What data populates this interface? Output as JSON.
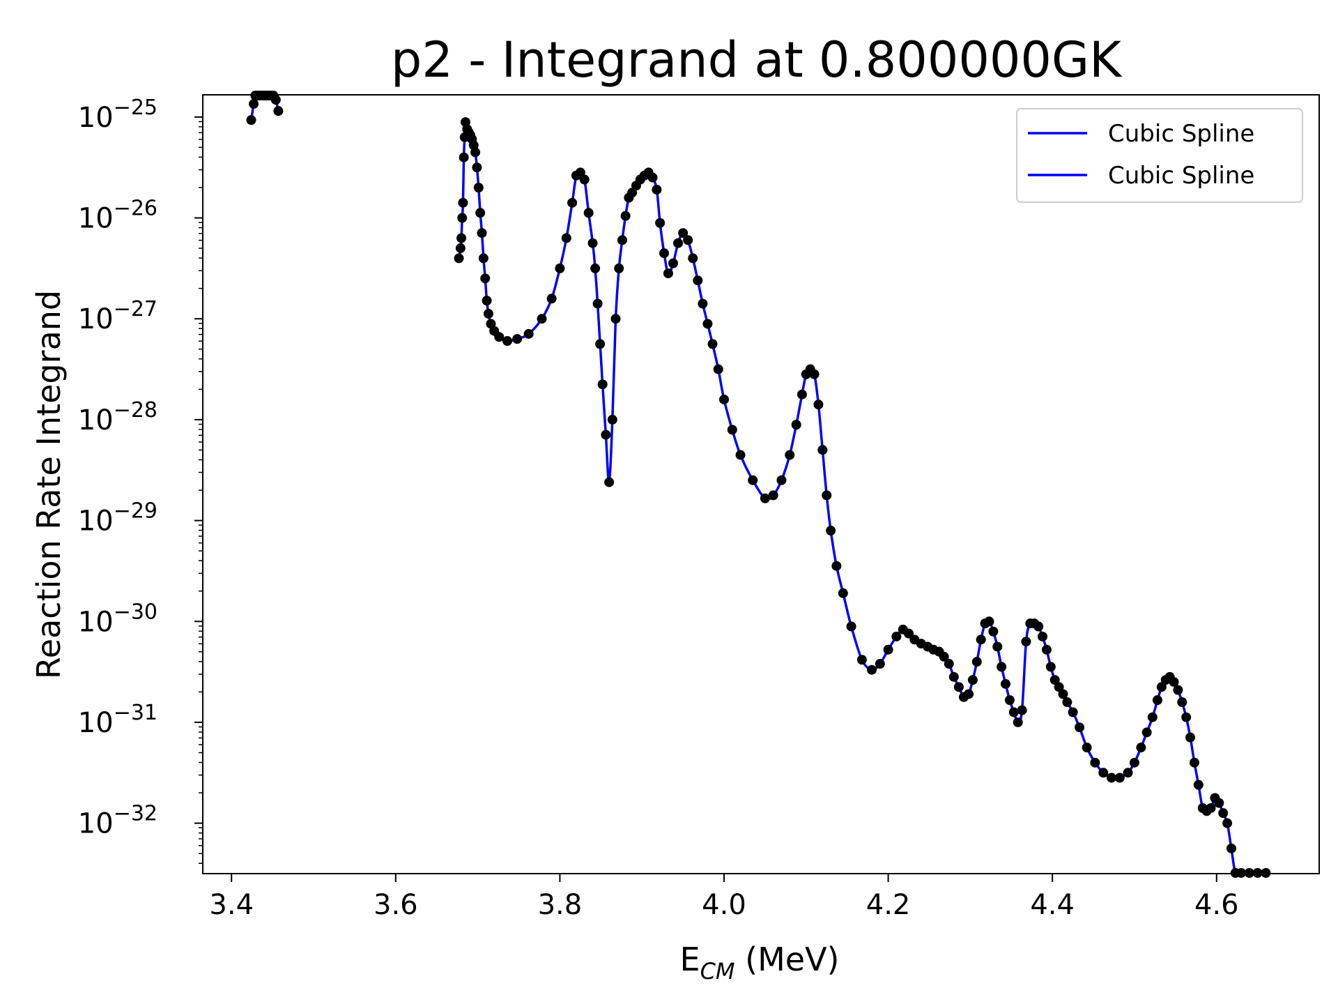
{
  "chart_data": {
    "type": "line",
    "title": "p2 - Integrand at 0.800000GK",
    "xlabel_main": "E",
    "xlabel_sub": "CM",
    "xlabel_unit": " (MeV)",
    "ylabel": "Reaction Rate Integrand",
    "xlim": [
      3.365,
      4.725
    ],
    "ylim_log10": [
      -32.5,
      -24.78
    ],
    "yscale": "log",
    "x_ticks": [
      "3.4",
      "3.6",
      "3.8",
      "4.0",
      "4.2",
      "4.4",
      "4.6"
    ],
    "y_ticks": [
      {
        "base": "10",
        "exp": "−25",
        "log": -25
      },
      {
        "base": "10",
        "exp": "−26",
        "log": -26
      },
      {
        "base": "10",
        "exp": "−27",
        "log": -27
      },
      {
        "base": "10",
        "exp": "−28",
        "log": -28
      },
      {
        "base": "10",
        "exp": "−29",
        "log": -29
      },
      {
        "base": "10",
        "exp": "−30",
        "log": -30
      },
      {
        "base": "10",
        "exp": "−31",
        "log": -31
      },
      {
        "base": "10",
        "exp": "−32",
        "log": -32
      }
    ],
    "grid": false,
    "legend_position": "top-right",
    "legend": [
      {
        "label": "Cubic Spline",
        "color": "#0000ff"
      },
      {
        "label": "Cubic Spline",
        "color": "#0000ff"
      }
    ],
    "series": [
      {
        "legend_index": 0,
        "color": "#0000ff",
        "points_color": "#000000",
        "x": [
          3.424,
          3.427,
          3.429,
          3.432,
          3.434,
          3.437,
          3.44,
          3.442,
          3.445,
          3.448,
          3.451,
          3.454,
          3.457
        ],
        "log10_y": [
          -25.03,
          -24.87,
          -24.78,
          -24.65,
          -24.62,
          -24.61,
          -24.6,
          -24.62,
          -24.65,
          -24.7,
          -24.75,
          -24.83,
          -24.94
        ]
      },
      {
        "legend_index": 1,
        "color": "#0000ff",
        "points_color": "#000000",
        "x": [
          3.677,
          3.679,
          3.68,
          3.681,
          3.682,
          3.683,
          3.684,
          3.685,
          3.687,
          3.689,
          3.691,
          3.693,
          3.695,
          3.697,
          3.699,
          3.701,
          3.703,
          3.705,
          3.707,
          3.709,
          3.711,
          3.713,
          3.716,
          3.72,
          3.726,
          3.736,
          3.748,
          3.762,
          3.778,
          3.79,
          3.8,
          3.808,
          3.815,
          3.82,
          3.825,
          3.83,
          3.835,
          3.84,
          3.843,
          3.846,
          3.849,
          3.852,
          3.856,
          3.86,
          3.864,
          3.868,
          3.872,
          3.876,
          3.88,
          3.884,
          3.888,
          3.893,
          3.898,
          3.903,
          3.908,
          3.913,
          3.918,
          3.922,
          3.927,
          3.932,
          3.938,
          3.944,
          3.95,
          3.956,
          3.962,
          3.968,
          3.974,
          3.98,
          3.986,
          3.993,
          4.0,
          4.01,
          4.02,
          4.035,
          4.05,
          4.06,
          4.07,
          4.08,
          4.088,
          4.095,
          4.1,
          4.105,
          4.11,
          4.115,
          4.12,
          4.125,
          4.13,
          4.137,
          4.145,
          4.155,
          4.168,
          4.18,
          4.19,
          4.2,
          4.21,
          4.218,
          4.225,
          4.232,
          4.24,
          4.248,
          4.255,
          4.262,
          4.268,
          4.274,
          4.28,
          4.286,
          4.292,
          4.298,
          4.303,
          4.308,
          4.313,
          4.318,
          4.323,
          4.328,
          4.333,
          4.338,
          4.343,
          4.348,
          4.353,
          4.358,
          4.363,
          4.368,
          4.373,
          4.378,
          4.383,
          4.388,
          4.393,
          4.398,
          4.403,
          4.408,
          4.413,
          4.418,
          4.425,
          4.433,
          4.442,
          4.452,
          4.462,
          4.472,
          4.482,
          4.492,
          4.5,
          4.508,
          4.515,
          4.522,
          4.528,
          4.533,
          4.538,
          4.543,
          4.548,
          4.553,
          4.558,
          4.563,
          4.568,
          4.573,
          4.578,
          4.583,
          4.588,
          4.593,
          4.598,
          4.603,
          4.608,
          4.613,
          4.618,
          4.623,
          4.63,
          4.64,
          4.65,
          4.66
        ],
        "log10_y": [
          -26.4,
          -26.3,
          -26.2,
          -26.0,
          -25.85,
          -25.4,
          -25.2,
          -25.05,
          -25.12,
          -25.15,
          -25.18,
          -25.22,
          -25.28,
          -25.35,
          -25.5,
          -25.7,
          -25.95,
          -26.15,
          -26.4,
          -26.6,
          -26.82,
          -26.95,
          -27.05,
          -27.12,
          -27.18,
          -27.22,
          -27.2,
          -27.15,
          -27.0,
          -26.8,
          -26.5,
          -26.2,
          -25.85,
          -25.58,
          -25.55,
          -25.62,
          -25.95,
          -26.25,
          -26.5,
          -26.85,
          -27.25,
          -27.65,
          -28.15,
          -28.62,
          -28.0,
          -27.0,
          -26.5,
          -26.22,
          -25.98,
          -25.8,
          -25.75,
          -25.68,
          -25.62,
          -25.58,
          -25.55,
          -25.6,
          -25.72,
          -26.05,
          -26.35,
          -26.55,
          -26.45,
          -26.25,
          -26.15,
          -26.22,
          -26.4,
          -26.62,
          -26.85,
          -27.05,
          -27.25,
          -27.5,
          -27.8,
          -28.1,
          -28.35,
          -28.6,
          -28.78,
          -28.75,
          -28.6,
          -28.35,
          -28.05,
          -27.75,
          -27.55,
          -27.5,
          -27.55,
          -27.85,
          -28.3,
          -28.75,
          -29.1,
          -29.45,
          -29.72,
          -30.05,
          -30.38,
          -30.48,
          -30.42,
          -30.28,
          -30.15,
          -30.08,
          -30.12,
          -30.18,
          -30.22,
          -30.25,
          -30.28,
          -30.3,
          -30.35,
          -30.42,
          -30.55,
          -30.65,
          -30.75,
          -30.72,
          -30.58,
          -30.4,
          -30.18,
          -30.02,
          -30.0,
          -30.1,
          -30.25,
          -30.45,
          -30.62,
          -30.78,
          -30.9,
          -31.0,
          -30.88,
          -30.2,
          -30.02,
          -30.02,
          -30.05,
          -30.15,
          -30.28,
          -30.45,
          -30.58,
          -30.65,
          -30.72,
          -30.8,
          -30.9,
          -31.05,
          -31.25,
          -31.4,
          -31.5,
          -31.55,
          -31.55,
          -31.5,
          -31.4,
          -31.25,
          -31.1,
          -30.95,
          -30.78,
          -30.65,
          -30.58,
          -30.55,
          -30.6,
          -30.68,
          -30.8,
          -30.95,
          -31.15,
          -31.4,
          -31.62,
          -31.85,
          -31.88,
          -31.85,
          -31.75,
          -31.8,
          -31.9,
          -32.0,
          -32.25,
          -32.55,
          -32.85,
          -33.0,
          -33.15,
          -33.2,
          -33.25,
          -33.22,
          -33.18,
          -33.2
        ]
      }
    ]
  }
}
